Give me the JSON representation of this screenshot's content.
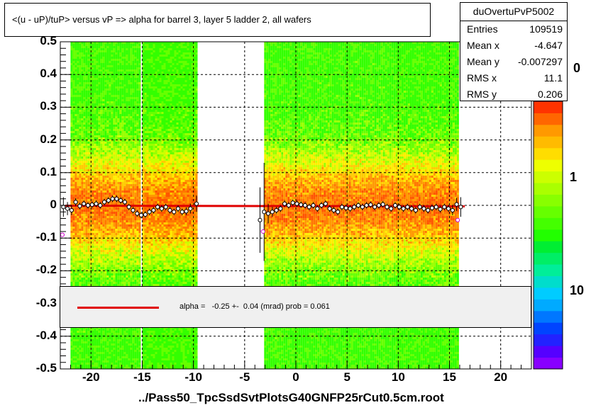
{
  "chart_data": {
    "type": "scatter",
    "title": "<(u - uP)/tuP>  versus   vP => alpha for barrel 3, layer 5 ladder 2, all wafers",
    "xlabel": "../Pass50_TpcSsdSvtPlotsG40GNFP25rCut0.5cm.root",
    "ylabel": "",
    "xlim": [
      -23,
      23
    ],
    "ylim": [
      -0.5,
      0.5
    ],
    "x_ticks": [
      -20,
      -15,
      -10,
      -5,
      0,
      5,
      10,
      15,
      20
    ],
    "y_ticks": [
      0.5,
      0.4,
      0.3,
      0.2,
      0.1,
      0,
      -0.1,
      -0.2,
      -0.3,
      -0.4,
      -0.5
    ],
    "x_tick_labels": [
      "-20",
      "-15",
      "-10",
      "-5",
      "0",
      "5",
      "10",
      "15",
      "20"
    ],
    "y_tick_labels": [
      "0.5",
      "0.4",
      "0.3",
      "0.2",
      "0.1",
      "0",
      "-0.1",
      "-0.2",
      "-0.3",
      "-0.4",
      "-0.5"
    ],
    "grid": true,
    "heatmap_bands": [
      [
        -22,
        -15.2
      ],
      [
        -15,
        -9.8
      ],
      [
        -3.1,
        3.1
      ],
      [
        3.1,
        9.9
      ],
      [
        9.9,
        15.9
      ]
    ],
    "profile_points": {
      "x": [
        -22.7,
        -22.3,
        -21.9,
        -21.5,
        -21.1,
        -20.7,
        -20.3,
        -19.9,
        -19.5,
        -19.1,
        -18.7,
        -18.3,
        -17.9,
        -17.5,
        -17.1,
        -16.7,
        -16.3,
        -15.9,
        -15.5,
        -15.1,
        -14.7,
        -14.3,
        -13.9,
        -13.5,
        -13.1,
        -12.7,
        -12.3,
        -11.9,
        -11.5,
        -11.1,
        -10.7,
        -10.3,
        -9.7,
        -3.5,
        -3.1,
        -2.7,
        -2.3,
        -1.9,
        -1.5,
        -1.1,
        -0.7,
        -0.3,
        0.1,
        0.5,
        0.9,
        1.3,
        1.7,
        2.1,
        2.5,
        2.9,
        3.3,
        3.7,
        4.1,
        4.5,
        4.9,
        5.3,
        5.7,
        6.1,
        6.5,
        6.9,
        7.3,
        7.7,
        8.1,
        8.5,
        8.9,
        9.3,
        9.7,
        10.1,
        10.5,
        10.9,
        11.3,
        11.7,
        12.1,
        12.5,
        12.9,
        13.3,
        13.7,
        14.1,
        14.5,
        14.9,
        15.3,
        15.7,
        16.1
      ],
      "y": [
        -0.005,
        -0.01,
        -0.015,
        0.01,
        -0.002,
        0.005,
        0.0,
        0.002,
        0.005,
        0.0,
        0.01,
        0.015,
        0.02,
        0.02,
        0.015,
        0.01,
        -0.005,
        -0.015,
        -0.025,
        -0.03,
        -0.028,
        -0.02,
        -0.015,
        -0.005,
        -0.01,
        -0.005,
        -0.015,
        -0.02,
        -0.01,
        -0.02,
        -0.018,
        -0.01,
        0.005,
        -0.045,
        -0.02,
        -0.025,
        -0.02,
        -0.015,
        -0.01,
        0.005,
        0.0,
        0.008,
        0.005,
        0.002,
        0.0,
        -0.005,
        0.0,
        -0.01,
        0.0,
        0.005,
        -0.01,
        -0.015,
        -0.02,
        -0.005,
        -0.008,
        -0.01,
        -0.005,
        0.0,
        -0.005,
        0.0,
        0.002,
        -0.005,
        0.0,
        0.003,
        -0.005,
        -0.01,
        0.0,
        -0.005,
        -0.01,
        -0.005,
        -0.01,
        -0.015,
        -0.005,
        -0.01,
        -0.015,
        -0.008,
        -0.005,
        -0.012,
        -0.005,
        -0.01,
        -0.015,
        0.003,
        -0.005
      ],
      "y_err": [
        0.03,
        0.02,
        0.015,
        0.012,
        0.01,
        0.01,
        0.01,
        0.01,
        0.01,
        0.01,
        0.01,
        0.01,
        0.01,
        0.01,
        0.01,
        0.01,
        0.01,
        0.01,
        0.01,
        0.01,
        0.01,
        0.01,
        0.01,
        0.01,
        0.01,
        0.01,
        0.01,
        0.01,
        0.01,
        0.01,
        0.012,
        0.015,
        0.025,
        0.1,
        0.15,
        0.03,
        0.015,
        0.01,
        0.01,
        0.01,
        0.01,
        0.01,
        0.01,
        0.01,
        0.01,
        0.01,
        0.01,
        0.01,
        0.01,
        0.01,
        0.01,
        0.01,
        0.01,
        0.01,
        0.01,
        0.01,
        0.01,
        0.01,
        0.01,
        0.01,
        0.01,
        0.01,
        0.01,
        0.01,
        0.01,
        0.01,
        0.01,
        0.01,
        0.01,
        0.01,
        0.01,
        0.01,
        0.01,
        0.01,
        0.01,
        0.01,
        0.01,
        0.01,
        0.01,
        0.01,
        0.015,
        0.02,
        0.03
      ]
    },
    "magenta_points": {
      "x": [
        -22.8,
        -3.2,
        15.8
      ],
      "y": [
        -0.09,
        -0.08,
        -0.045
      ]
    },
    "fit_line": {
      "x": [
        -22.5,
        16.5
      ],
      "y": [
        -0.001,
        -0.003
      ],
      "color": "#e00000"
    },
    "colorbar": {
      "tick_labels": [
        "1",
        "10"
      ],
      "partial_top_label": "0"
    }
  },
  "stats": {
    "name": "duOvertuPvP5002",
    "rows": [
      {
        "label": "Entries",
        "value": "109519"
      },
      {
        "label": "Mean x",
        "value": "-4.647"
      },
      {
        "label": "Mean y",
        "value": "-0.007297"
      },
      {
        "label": "RMS x",
        "value": "11.1"
      },
      {
        "label": "RMS y",
        "value": "0.206"
      }
    ]
  },
  "fit_legend": {
    "text": "alpha =   -0.25 +-  0.04 (mrad) prob = 0.061",
    "line_color": "#e00000"
  }
}
